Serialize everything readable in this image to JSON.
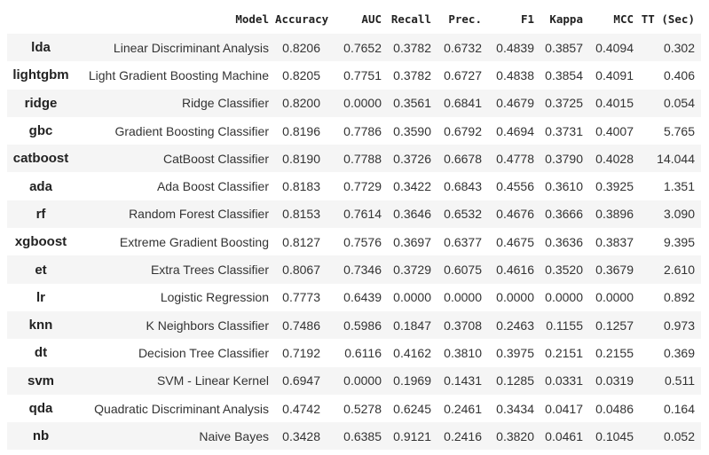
{
  "table": {
    "header": [
      "Model",
      "Accuracy",
      "AUC",
      "Recall",
      "Prec.",
      "F1",
      "Kappa",
      "MCC",
      "TT (Sec)"
    ],
    "rows": [
      [
        "lda",
        "Linear Discriminant Analysis",
        "0.8206",
        "0.7652",
        "0.3782",
        "0.6732",
        "0.4839",
        "0.3857",
        "0.4094",
        "0.302"
      ],
      [
        "lightgbm",
        "Light Gradient Boosting Machine",
        "0.8205",
        "0.7751",
        "0.3782",
        "0.6727",
        "0.4838",
        "0.3854",
        "0.4091",
        "0.406"
      ],
      [
        "ridge",
        "Ridge Classifier",
        "0.8200",
        "0.0000",
        "0.3561",
        "0.6841",
        "0.4679",
        "0.3725",
        "0.4015",
        "0.054"
      ],
      [
        "gbc",
        "Gradient Boosting Classifier",
        "0.8196",
        "0.7786",
        "0.3590",
        "0.6792",
        "0.4694",
        "0.3731",
        "0.4007",
        "5.765"
      ],
      [
        "catboost",
        "CatBoost Classifier",
        "0.8190",
        "0.7788",
        "0.3726",
        "0.6678",
        "0.4778",
        "0.3790",
        "0.4028",
        "14.044"
      ],
      [
        "ada",
        "Ada Boost Classifier",
        "0.8183",
        "0.7729",
        "0.3422",
        "0.6843",
        "0.4556",
        "0.3610",
        "0.3925",
        "1.351"
      ],
      [
        "rf",
        "Random Forest Classifier",
        "0.8153",
        "0.7614",
        "0.3646",
        "0.6532",
        "0.4676",
        "0.3666",
        "0.3896",
        "3.090"
      ],
      [
        "xgboost",
        "Extreme Gradient Boosting",
        "0.8127",
        "0.7576",
        "0.3697",
        "0.6377",
        "0.4675",
        "0.3636",
        "0.3837",
        "9.395"
      ],
      [
        "et",
        "Extra Trees Classifier",
        "0.8067",
        "0.7346",
        "0.3729",
        "0.6075",
        "0.4616",
        "0.3520",
        "0.3679",
        "2.610"
      ],
      [
        "lr",
        "Logistic Regression",
        "0.7773",
        "0.6439",
        "0.0000",
        "0.0000",
        "0.0000",
        "0.0000",
        "0.0000",
        "0.892"
      ],
      [
        "knn",
        "K Neighbors Classifier",
        "0.7486",
        "0.5986",
        "0.1847",
        "0.3708",
        "0.2463",
        "0.1155",
        "0.1257",
        "0.973"
      ],
      [
        "dt",
        "Decision Tree Classifier",
        "0.7192",
        "0.6116",
        "0.4162",
        "0.3810",
        "0.3975",
        "0.2151",
        "0.2155",
        "0.369"
      ],
      [
        "svm",
        "SVM - Linear Kernel",
        "0.6947",
        "0.0000",
        "0.1969",
        "0.1431",
        "0.1285",
        "0.0331",
        "0.0319",
        "0.511"
      ],
      [
        "qda",
        "Quadratic Discriminant Analysis",
        "0.4742",
        "0.5278",
        "0.6245",
        "0.2461",
        "0.3434",
        "0.0417",
        "0.0486",
        "0.164"
      ],
      [
        "nb",
        "Naive Bayes",
        "0.3428",
        "0.6385",
        "0.9121",
        "0.2416",
        "0.3820",
        "0.0461",
        "0.1045",
        "0.052"
      ]
    ]
  }
}
